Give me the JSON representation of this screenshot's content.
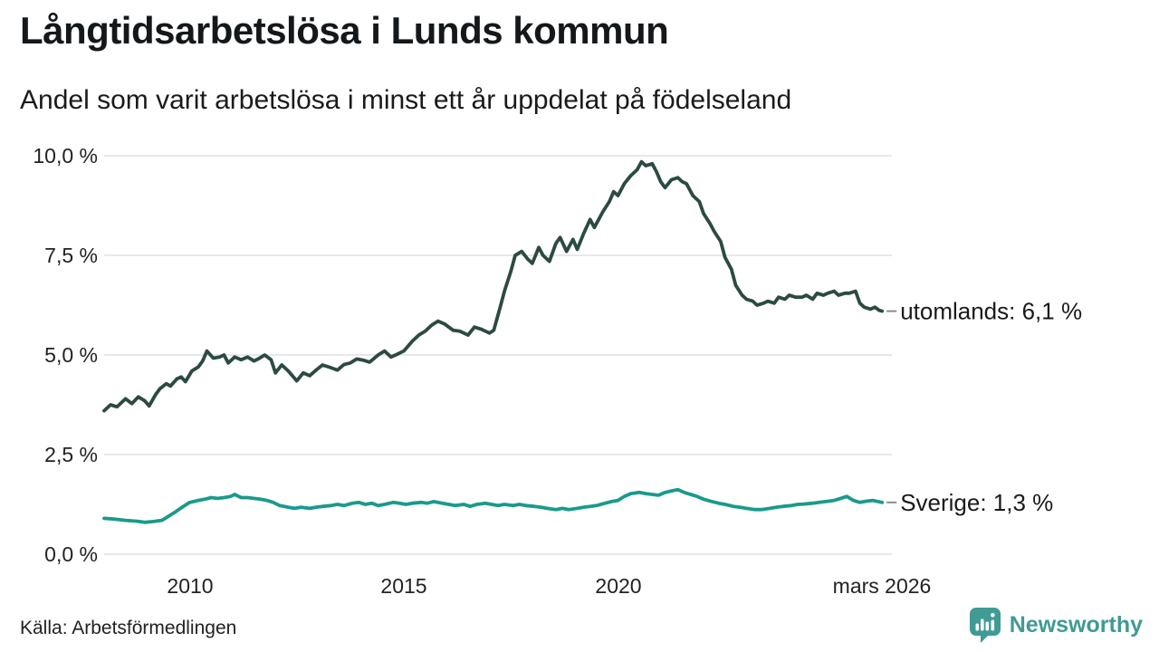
{
  "title": "Långtidsarbetslösa i Lunds kommun",
  "subtitle": "Andel som varit arbetslösa i minst ett år uppdelat på födelseland",
  "source": "Källa: Arbetsförmedlingen",
  "logo": {
    "wordmark": "Newsworthy",
    "color": "#3f9b94",
    "icon": "newsworthy-bubble-barchart-icon"
  },
  "colors": {
    "utomlands_line": "#2c4a43",
    "sverige_line": "#199a8d",
    "grid": "#e8e8ec",
    "annotation_dash": "#8b8b8b",
    "text": "#1a1a1a"
  },
  "chart_data": {
    "type": "line",
    "title": "Långtidsarbetslösa i Lunds kommun",
    "subtitle": "Andel som varit arbetslösa i minst ett år uppdelat på födelseland",
    "xlabel": "",
    "ylabel": "",
    "grid": "horizontal",
    "legend": "line-end-labels",
    "ylim": [
      0,
      10
    ],
    "xlim": [
      2008.0,
      2026.25
    ],
    "yticks": [
      {
        "value": 0,
        "label": "0,0 %"
      },
      {
        "value": 2.5,
        "label": "2,5 %"
      },
      {
        "value": 5,
        "label": "5,0 %"
      },
      {
        "value": 7.5,
        "label": "7,5 %"
      },
      {
        "value": 10,
        "label": "10,0 %"
      }
    ],
    "xticks": [
      {
        "value": 2010,
        "label": "2010"
      },
      {
        "value": 2015,
        "label": "2015"
      },
      {
        "value": 2020,
        "label": "2020"
      },
      {
        "value": 2026.17,
        "label": "mars 2026"
      }
    ],
    "series": [
      {
        "name": "utomlands",
        "end_label": "utomlands: 6,1 %",
        "last_value": "6,1 %",
        "color": "#2c4a43",
        "points": [
          [
            2008.0,
            3.6
          ],
          [
            2008.15,
            3.75
          ],
          [
            2008.3,
            3.7
          ],
          [
            2008.5,
            3.9
          ],
          [
            2008.65,
            3.78
          ],
          [
            2008.8,
            3.95
          ],
          [
            2008.95,
            3.85
          ],
          [
            2009.05,
            3.72
          ],
          [
            2009.2,
            4.0
          ],
          [
            2009.3,
            4.15
          ],
          [
            2009.45,
            4.28
          ],
          [
            2009.55,
            4.22
          ],
          [
            2009.7,
            4.4
          ],
          [
            2009.8,
            4.45
          ],
          [
            2009.9,
            4.33
          ],
          [
            2010.05,
            4.6
          ],
          [
            2010.2,
            4.7
          ],
          [
            2010.3,
            4.85
          ],
          [
            2010.4,
            5.1
          ],
          [
            2010.55,
            4.92
          ],
          [
            2010.7,
            4.95
          ],
          [
            2010.8,
            5.0
          ],
          [
            2010.9,
            4.8
          ],
          [
            2011.05,
            4.95
          ],
          [
            2011.2,
            4.88
          ],
          [
            2011.35,
            4.95
          ],
          [
            2011.5,
            4.85
          ],
          [
            2011.6,
            4.9
          ],
          [
            2011.75,
            5.0
          ],
          [
            2011.9,
            4.88
          ],
          [
            2012.0,
            4.55
          ],
          [
            2012.15,
            4.75
          ],
          [
            2012.3,
            4.6
          ],
          [
            2012.5,
            4.35
          ],
          [
            2012.65,
            4.55
          ],
          [
            2012.8,
            4.48
          ],
          [
            2012.95,
            4.62
          ],
          [
            2013.1,
            4.75
          ],
          [
            2013.3,
            4.68
          ],
          [
            2013.45,
            4.62
          ],
          [
            2013.6,
            4.76
          ],
          [
            2013.75,
            4.8
          ],
          [
            2013.9,
            4.9
          ],
          [
            2014.05,
            4.87
          ],
          [
            2014.2,
            4.82
          ],
          [
            2014.4,
            5.0
          ],
          [
            2014.55,
            5.1
          ],
          [
            2014.7,
            4.95
          ],
          [
            2014.85,
            5.02
          ],
          [
            2015.0,
            5.1
          ],
          [
            2015.2,
            5.35
          ],
          [
            2015.35,
            5.5
          ],
          [
            2015.5,
            5.6
          ],
          [
            2015.65,
            5.75
          ],
          [
            2015.8,
            5.85
          ],
          [
            2015.95,
            5.78
          ],
          [
            2016.15,
            5.62
          ],
          [
            2016.3,
            5.6
          ],
          [
            2016.5,
            5.5
          ],
          [
            2016.65,
            5.7
          ],
          [
            2016.8,
            5.65
          ],
          [
            2017.0,
            5.55
          ],
          [
            2017.1,
            5.62
          ],
          [
            2017.25,
            6.2
          ],
          [
            2017.35,
            6.6
          ],
          [
            2017.5,
            7.1
          ],
          [
            2017.6,
            7.5
          ],
          [
            2017.75,
            7.6
          ],
          [
            2017.9,
            7.4
          ],
          [
            2018.0,
            7.3
          ],
          [
            2018.15,
            7.7
          ],
          [
            2018.25,
            7.5
          ],
          [
            2018.4,
            7.35
          ],
          [
            2018.55,
            7.8
          ],
          [
            2018.65,
            7.95
          ],
          [
            2018.8,
            7.6
          ],
          [
            2018.95,
            7.9
          ],
          [
            2019.05,
            7.65
          ],
          [
            2019.2,
            8.05
          ],
          [
            2019.35,
            8.4
          ],
          [
            2019.45,
            8.2
          ],
          [
            2019.65,
            8.6
          ],
          [
            2019.8,
            8.85
          ],
          [
            2019.9,
            9.1
          ],
          [
            2020.0,
            9.0
          ],
          [
            2020.15,
            9.3
          ],
          [
            2020.3,
            9.5
          ],
          [
            2020.45,
            9.65
          ],
          [
            2020.55,
            9.85
          ],
          [
            2020.65,
            9.75
          ],
          [
            2020.8,
            9.8
          ],
          [
            2020.9,
            9.6
          ],
          [
            2021.0,
            9.35
          ],
          [
            2021.1,
            9.2
          ],
          [
            2021.25,
            9.4
          ],
          [
            2021.4,
            9.45
          ],
          [
            2021.5,
            9.35
          ],
          [
            2021.6,
            9.3
          ],
          [
            2021.75,
            9.0
          ],
          [
            2021.9,
            8.85
          ],
          [
            2022.0,
            8.55
          ],
          [
            2022.15,
            8.3
          ],
          [
            2022.25,
            8.1
          ],
          [
            2022.4,
            7.85
          ],
          [
            2022.5,
            7.45
          ],
          [
            2022.65,
            7.15
          ],
          [
            2022.75,
            6.75
          ],
          [
            2022.9,
            6.5
          ],
          [
            2023.0,
            6.4
          ],
          [
            2023.15,
            6.35
          ],
          [
            2023.25,
            6.25
          ],
          [
            2023.4,
            6.3
          ],
          [
            2023.5,
            6.35
          ],
          [
            2023.65,
            6.3
          ],
          [
            2023.75,
            6.45
          ],
          [
            2023.9,
            6.4
          ],
          [
            2024.0,
            6.5
          ],
          [
            2024.15,
            6.45
          ],
          [
            2024.3,
            6.45
          ],
          [
            2024.4,
            6.5
          ],
          [
            2024.55,
            6.4
          ],
          [
            2024.65,
            6.55
          ],
          [
            2024.8,
            6.5
          ],
          [
            2024.9,
            6.55
          ],
          [
            2025.05,
            6.6
          ],
          [
            2025.15,
            6.5
          ],
          [
            2025.3,
            6.55
          ],
          [
            2025.4,
            6.55
          ],
          [
            2025.55,
            6.6
          ],
          [
            2025.65,
            6.3
          ],
          [
            2025.75,
            6.2
          ],
          [
            2025.9,
            6.15
          ],
          [
            2026.0,
            6.2
          ],
          [
            2026.1,
            6.12
          ],
          [
            2026.17,
            6.1
          ]
        ]
      },
      {
        "name": "Sverige",
        "end_label": "Sverige: 1,3 %",
        "last_value": "1,3 %",
        "color": "#199a8d",
        "points": [
          [
            2008.0,
            0.9
          ],
          [
            2008.25,
            0.88
          ],
          [
            2008.5,
            0.85
          ],
          [
            2008.75,
            0.83
          ],
          [
            2008.95,
            0.8
          ],
          [
            2009.15,
            0.82
          ],
          [
            2009.35,
            0.85
          ],
          [
            2009.5,
            0.95
          ],
          [
            2009.65,
            1.05
          ],
          [
            2009.85,
            1.2
          ],
          [
            2010.0,
            1.3
          ],
          [
            2010.2,
            1.35
          ],
          [
            2010.35,
            1.38
          ],
          [
            2010.5,
            1.42
          ],
          [
            2010.65,
            1.4
          ],
          [
            2010.8,
            1.42
          ],
          [
            2010.95,
            1.45
          ],
          [
            2011.05,
            1.5
          ],
          [
            2011.2,
            1.42
          ],
          [
            2011.35,
            1.42
          ],
          [
            2011.5,
            1.4
          ],
          [
            2011.65,
            1.38
          ],
          [
            2011.8,
            1.35
          ],
          [
            2011.95,
            1.3
          ],
          [
            2012.1,
            1.22
          ],
          [
            2012.3,
            1.18
          ],
          [
            2012.45,
            1.15
          ],
          [
            2012.6,
            1.18
          ],
          [
            2012.8,
            1.15
          ],
          [
            2012.95,
            1.18
          ],
          [
            2013.1,
            1.2
          ],
          [
            2013.3,
            1.22
          ],
          [
            2013.45,
            1.25
          ],
          [
            2013.6,
            1.22
          ],
          [
            2013.8,
            1.28
          ],
          [
            2013.95,
            1.3
          ],
          [
            2014.1,
            1.25
          ],
          [
            2014.25,
            1.28
          ],
          [
            2014.4,
            1.22
          ],
          [
            2014.55,
            1.25
          ],
          [
            2014.75,
            1.3
          ],
          [
            2014.9,
            1.28
          ],
          [
            2015.05,
            1.25
          ],
          [
            2015.2,
            1.28
          ],
          [
            2015.4,
            1.3
          ],
          [
            2015.55,
            1.28
          ],
          [
            2015.7,
            1.32
          ],
          [
            2015.9,
            1.28
          ],
          [
            2016.05,
            1.25
          ],
          [
            2016.2,
            1.22
          ],
          [
            2016.4,
            1.25
          ],
          [
            2016.55,
            1.2
          ],
          [
            2016.7,
            1.25
          ],
          [
            2016.9,
            1.28
          ],
          [
            2017.05,
            1.25
          ],
          [
            2017.2,
            1.22
          ],
          [
            2017.35,
            1.25
          ],
          [
            2017.55,
            1.22
          ],
          [
            2017.7,
            1.25
          ],
          [
            2017.85,
            1.22
          ],
          [
            2018.05,
            1.2
          ],
          [
            2018.2,
            1.18
          ],
          [
            2018.35,
            1.15
          ],
          [
            2018.55,
            1.12
          ],
          [
            2018.7,
            1.15
          ],
          [
            2018.85,
            1.12
          ],
          [
            2019.05,
            1.15
          ],
          [
            2019.2,
            1.18
          ],
          [
            2019.35,
            1.2
          ],
          [
            2019.5,
            1.22
          ],
          [
            2019.7,
            1.28
          ],
          [
            2019.85,
            1.32
          ],
          [
            2020.0,
            1.35
          ],
          [
            2020.15,
            1.45
          ],
          [
            2020.3,
            1.52
          ],
          [
            2020.5,
            1.55
          ],
          [
            2020.65,
            1.52
          ],
          [
            2020.8,
            1.5
          ],
          [
            2020.95,
            1.48
          ],
          [
            2021.1,
            1.55
          ],
          [
            2021.3,
            1.6
          ],
          [
            2021.4,
            1.62
          ],
          [
            2021.55,
            1.55
          ],
          [
            2021.7,
            1.5
          ],
          [
            2021.85,
            1.45
          ],
          [
            2022.0,
            1.38
          ],
          [
            2022.2,
            1.32
          ],
          [
            2022.35,
            1.28
          ],
          [
            2022.5,
            1.25
          ],
          [
            2022.7,
            1.2
          ],
          [
            2022.85,
            1.18
          ],
          [
            2023.0,
            1.15
          ],
          [
            2023.2,
            1.12
          ],
          [
            2023.35,
            1.12
          ],
          [
            2023.55,
            1.15
          ],
          [
            2023.7,
            1.18
          ],
          [
            2023.85,
            1.2
          ],
          [
            2024.05,
            1.22
          ],
          [
            2024.2,
            1.25
          ],
          [
            2024.35,
            1.26
          ],
          [
            2024.55,
            1.28
          ],
          [
            2024.7,
            1.3
          ],
          [
            2024.85,
            1.32
          ],
          [
            2025.05,
            1.35
          ],
          [
            2025.2,
            1.4
          ],
          [
            2025.35,
            1.45
          ],
          [
            2025.5,
            1.35
          ],
          [
            2025.65,
            1.3
          ],
          [
            2025.8,
            1.33
          ],
          [
            2025.95,
            1.35
          ],
          [
            2026.17,
            1.3
          ]
        ]
      }
    ]
  }
}
